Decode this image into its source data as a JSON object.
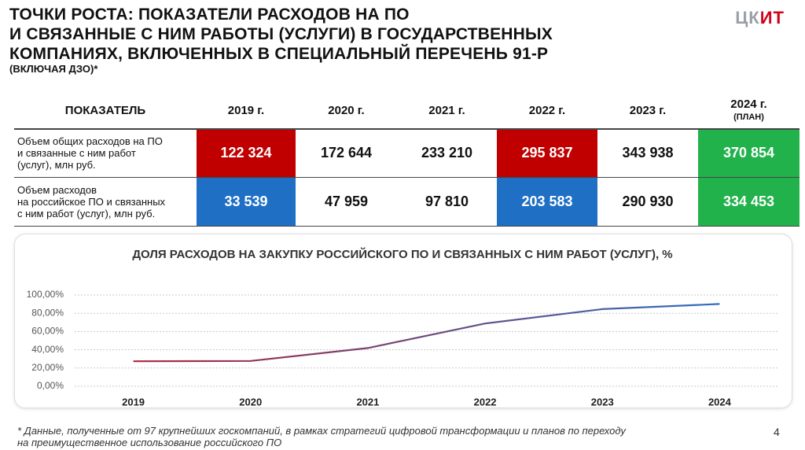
{
  "header": {
    "title": [
      "ТОЧКИ РОСТА: ПОКАЗАТЕЛИ РАСХОДОВ НА ПО",
      "И СВЯЗАННЫЕ С НИМ РАБОТЫ (УСЛУГИ) В ГОСУДАРСТВЕННЫХ",
      "КОМПАНИЯХ, ВКЛЮЧЕННЫХ В СПЕЦИАЛЬНЫЙ ПЕРЕЧЕНЬ 91-Р"
    ],
    "subtitle": "(ВКЛЮЧАЯ ДЗО)*",
    "logo": [
      "ЦК",
      "ИТ"
    ]
  },
  "table": {
    "columns": [
      "ПОКАЗАТЕЛЬ",
      "2019 г.",
      "2020 г.",
      "2021 г.",
      "2022 г.",
      "2023 г.",
      "2024 г."
    ],
    "column_note": "(ПЛАН)",
    "rows": [
      {
        "label": [
          "Объем общих расходов на ПО",
          "и связанные с ним работ",
          "(услуг), млн руб."
        ],
        "values": [
          "122 324",
          "172 644",
          "233 210",
          "295 837",
          "343 938",
          "370 854"
        ]
      },
      {
        "label": [
          "Объем расходов",
          "на российское ПО и связанных",
          "с ним работ (услуг), млн руб."
        ],
        "values": [
          "33 539",
          "47 959",
          "97 810",
          "203 583",
          "290 930",
          "334 453"
        ]
      }
    ]
  },
  "chart_data": {
    "type": "line",
    "title": "ДОЛЯ РАСХОДОВ НА ЗАКУПКУ РОССИЙСКОГО ПО И СВЯЗАННЫХ С НИМ РАБОТ (УСЛУГ), %",
    "categories": [
      "2019",
      "2020",
      "2021",
      "2022",
      "2023",
      "2024"
    ],
    "values": [
      27.4,
      27.8,
      41.9,
      68.8,
      84.6,
      90.2
    ],
    "color": [
      "#b0263a",
      "#2e6fc0"
    ],
    "ylim": [
      0,
      100
    ],
    "yticks": [
      {
        "value": 0,
        "label": "0,00%"
      },
      {
        "value": 20,
        "label": "20,00%"
      },
      {
        "value": 40,
        "label": "40,00%"
      },
      {
        "value": 60,
        "label": "60,00%"
      },
      {
        "value": 80,
        "label": "80,00%"
      },
      {
        "value": 100,
        "label": "100,00%"
      }
    ],
    "grid": true
  },
  "footnote": [
    "* Данные, полученные от 97 крупнейших госкомпаний, в рамках стратегий цифровой трансформации и планов по переходу",
    "на преимущественное использование российского ПО"
  ],
  "page_number": "4"
}
